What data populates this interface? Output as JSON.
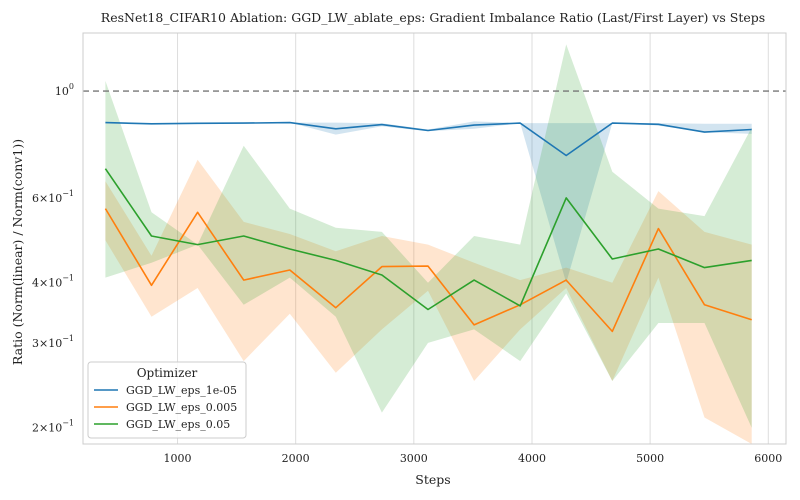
{
  "chart_data": {
    "type": "line",
    "title": "ResNet18_CIFAR10 Ablation: GGD_LW_ablate_eps: Gradient Imbalance Ratio (Last/First Layer) vs Steps",
    "xlabel": "Steps",
    "ylabel": "Ratio (Norm(linear) / Norm(conv1))",
    "xlim": [
      200,
      6150
    ],
    "ylim": [
      0.185,
      1.32
    ],
    "yscale": "log",
    "x_ticks": [
      {
        "value": 1000,
        "label": "1000"
      },
      {
        "value": 2000,
        "label": "2000"
      },
      {
        "value": 3000,
        "label": "3000"
      },
      {
        "value": 4000,
        "label": "4000"
      },
      {
        "value": 5000,
        "label": "5000"
      },
      {
        "value": 6000,
        "label": "6000"
      }
    ],
    "y_ticks": [
      {
        "value": 1.0,
        "base": "10",
        "exp": "0",
        "mant": ""
      },
      {
        "value": 0.6,
        "base": "10",
        "exp": "−1",
        "mant": "6×"
      },
      {
        "value": 0.4,
        "base": "10",
        "exp": "−1",
        "mant": "4×"
      },
      {
        "value": 0.3,
        "base": "10",
        "exp": "−1",
        "mant": "3×"
      },
      {
        "value": 0.2,
        "base": "10",
        "exp": "−1",
        "mant": "2×"
      }
    ],
    "reference_line": {
      "y": 1.0,
      "style": "dashed",
      "color": "#777777"
    },
    "grid": true,
    "legend": {
      "title": "Optimizer",
      "placement": "lower-left"
    },
    "x": [
      390,
      780,
      1170,
      1560,
      1950,
      2340,
      2730,
      3120,
      3510,
      3900,
      4290,
      4680,
      5070,
      5460,
      5860
    ],
    "series": [
      {
        "name": "GGD_LW_eps_1e-05",
        "color": "#1f77b4",
        "values": [
          0.86,
          0.855,
          0.857,
          0.858,
          0.86,
          0.835,
          0.852,
          0.828,
          0.85,
          0.858,
          0.735,
          0.858,
          0.853,
          0.822,
          0.832
        ],
        "lower": [
          0.86,
          0.855,
          0.857,
          0.858,
          0.86,
          0.812,
          0.845,
          0.825,
          0.835,
          0.858,
          0.4,
          0.858,
          0.848,
          0.822,
          0.815
        ],
        "upper": [
          0.86,
          0.855,
          0.857,
          0.858,
          0.86,
          0.86,
          0.857,
          0.832,
          0.865,
          0.858,
          0.858,
          0.858,
          0.858,
          0.855,
          0.855
        ]
      },
      {
        "name": "GGD_LW_eps_0.005",
        "color": "#ff7f0e",
        "values": [
          0.57,
          0.395,
          0.56,
          0.405,
          0.425,
          0.355,
          0.432,
          0.433,
          0.327,
          0.36,
          0.405,
          0.317,
          0.518,
          0.36,
          0.335
        ],
        "lower": [
          0.49,
          0.34,
          0.39,
          0.275,
          0.345,
          0.26,
          0.32,
          0.385,
          0.25,
          0.32,
          0.39,
          0.25,
          0.41,
          0.21,
          0.185
        ],
        "upper": [
          0.65,
          0.455,
          0.72,
          0.535,
          0.505,
          0.465,
          0.5,
          0.48,
          0.44,
          0.405,
          0.43,
          0.4,
          0.62,
          0.51,
          0.48
        ]
      },
      {
        "name": "GGD_LW_eps_0.05",
        "color": "#2ca02c",
        "values": [
          0.69,
          0.5,
          0.48,
          0.5,
          0.47,
          0.445,
          0.415,
          0.352,
          0.405,
          0.358,
          0.6,
          0.448,
          0.47,
          0.43,
          0.445
        ],
        "lower": [
          0.41,
          0.44,
          0.48,
          0.36,
          0.41,
          0.34,
          0.215,
          0.3,
          0.32,
          0.275,
          0.38,
          0.25,
          0.33,
          0.33,
          0.2
        ],
        "upper": [
          1.05,
          0.56,
          0.48,
          0.77,
          0.57,
          0.52,
          0.51,
          0.4,
          0.5,
          0.48,
          1.25,
          0.68,
          0.57,
          0.55,
          0.84
        ]
      }
    ]
  }
}
